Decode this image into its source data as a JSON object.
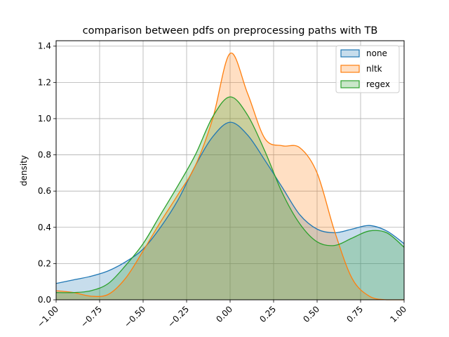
{
  "chart_data": {
    "type": "area",
    "title": "comparison between pdfs on preprocessing paths with TB",
    "xlabel": "",
    "ylabel": "density",
    "xlim": [
      -1.0,
      1.0
    ],
    "ylim": [
      0.0,
      1.43
    ],
    "grid": true,
    "legend_position": "top-right",
    "x_ticks": [
      "−1.00",
      "−0.75",
      "−0.50",
      "−0.25",
      "0.00",
      "0.25",
      "0.50",
      "0.75",
      "1.00"
    ],
    "y_ticks": [
      "0.0",
      "0.2",
      "0.4",
      "0.6",
      "0.8",
      "1.0",
      "1.2",
      "1.4"
    ],
    "x": [
      -1.0,
      -0.9,
      -0.8,
      -0.7,
      -0.6,
      -0.5,
      -0.4,
      -0.3,
      -0.2,
      -0.1,
      0.0,
      0.1,
      0.2,
      0.3,
      0.4,
      0.5,
      0.6,
      0.7,
      0.8,
      0.9,
      1.0
    ],
    "series": [
      {
        "name": "none",
        "color": "#1f77b4",
        "fill": "#c6dbef",
        "values": [
          0.09,
          0.11,
          0.13,
          0.16,
          0.21,
          0.28,
          0.4,
          0.55,
          0.74,
          0.9,
          0.98,
          0.91,
          0.77,
          0.62,
          0.47,
          0.39,
          0.37,
          0.39,
          0.41,
          0.38,
          0.31
        ]
      },
      {
        "name": "nltk",
        "color": "#ff7f0e",
        "fill": "#fdd0a2",
        "values": [
          0.05,
          0.04,
          0.02,
          0.03,
          0.12,
          0.27,
          0.43,
          0.58,
          0.74,
          1.0,
          1.36,
          1.14,
          0.89,
          0.85,
          0.84,
          0.7,
          0.38,
          0.12,
          0.02,
          0.0,
          0.0
        ]
      },
      {
        "name": "regex",
        "color": "#2ca02c",
        "fill": "#a1d99b",
        "values": [
          0.04,
          0.04,
          0.05,
          0.09,
          0.19,
          0.31,
          0.47,
          0.63,
          0.8,
          1.01,
          1.12,
          1.02,
          0.82,
          0.59,
          0.42,
          0.32,
          0.3,
          0.34,
          0.38,
          0.37,
          0.29
        ]
      }
    ]
  }
}
